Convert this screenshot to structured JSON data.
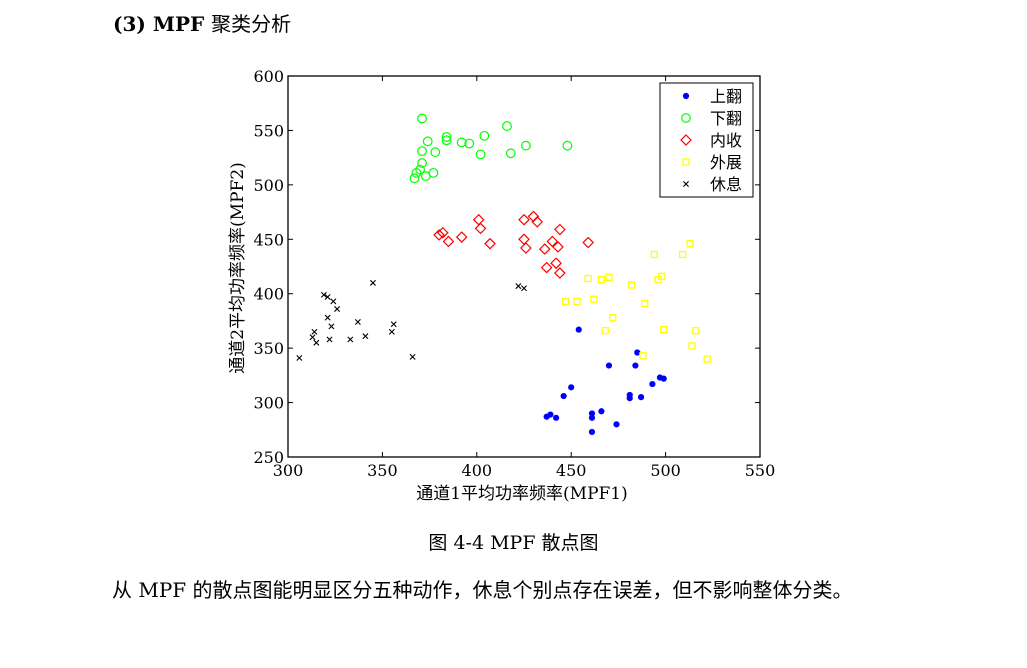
{
  "heading": {
    "number": "(3)",
    "title_en": "MPF",
    "title_zh": "聚类分析"
  },
  "caption": "图 4-4 MPF 散点图",
  "paragraph": "从 MPF 的散点图能明显区分五种动作，休息个别点存在误差，但不影响整体分类。",
  "chart_data": {
    "type": "scatter",
    "xlabel": "通道1平均功率频率(MPF1)",
    "ylabel": "通道2平均功率频率(MPF2)",
    "xlim": [
      300,
      550
    ],
    "ylim": [
      250,
      600
    ],
    "xticks": [
      300,
      350,
      400,
      450,
      500,
      550
    ],
    "yticks": [
      250,
      300,
      350,
      400,
      450,
      500,
      550,
      600
    ],
    "grid": false,
    "legend_position": "top-right",
    "series": [
      {
        "name": "上翻",
        "color": "#0000ff",
        "marker": "dot",
        "points": [
          [
            437,
            287
          ],
          [
            439,
            289
          ],
          [
            442,
            286
          ],
          [
            446,
            306
          ],
          [
            450,
            314
          ],
          [
            454,
            367
          ],
          [
            461,
            290
          ],
          [
            461,
            286
          ],
          [
            461,
            273
          ],
          [
            466,
            292
          ],
          [
            470,
            334
          ],
          [
            474,
            280
          ],
          [
            481,
            307
          ],
          [
            481,
            304
          ],
          [
            484,
            334
          ],
          [
            485,
            346
          ],
          [
            487,
            305
          ],
          [
            493,
            317
          ],
          [
            497,
            323
          ],
          [
            499,
            322
          ]
        ]
      },
      {
        "name": "下翻",
        "color": "#00ff00",
        "marker": "circle",
        "points": [
          [
            367,
            506
          ],
          [
            368,
            511
          ],
          [
            370,
            514
          ],
          [
            371,
            520
          ],
          [
            371,
            531
          ],
          [
            371,
            561
          ],
          [
            373,
            508
          ],
          [
            374,
            540
          ],
          [
            377,
            511
          ],
          [
            378,
            530
          ],
          [
            384,
            541
          ],
          [
            384,
            544
          ],
          [
            392,
            539
          ],
          [
            396,
            538
          ],
          [
            402,
            528
          ],
          [
            404,
            545
          ],
          [
            416,
            554
          ],
          [
            418,
            529
          ],
          [
            426,
            536
          ],
          [
            448,
            536
          ]
        ]
      },
      {
        "name": "内收",
        "color": "#ff0000",
        "marker": "diamond",
        "points": [
          [
            380,
            454
          ],
          [
            382,
            456
          ],
          [
            385,
            448
          ],
          [
            392,
            452
          ],
          [
            401,
            468
          ],
          [
            402,
            460
          ],
          [
            407,
            446
          ],
          [
            425,
            468
          ],
          [
            425,
            450
          ],
          [
            426,
            442
          ],
          [
            430,
            471
          ],
          [
            432,
            466
          ],
          [
            436,
            441
          ],
          [
            437,
            424
          ],
          [
            440,
            448
          ],
          [
            442,
            428
          ],
          [
            443,
            443
          ],
          [
            444,
            459
          ],
          [
            444,
            419
          ],
          [
            459,
            447
          ]
        ]
      },
      {
        "name": "外展",
        "color": "#ffff00",
        "marker": "square",
        "points": [
          [
            447,
            393
          ],
          [
            453,
            393
          ],
          [
            459,
            414
          ],
          [
            462,
            395
          ],
          [
            466,
            413
          ],
          [
            468,
            366
          ],
          [
            470,
            415
          ],
          [
            472,
            378
          ],
          [
            482,
            408
          ],
          [
            488,
            343
          ],
          [
            489,
            391
          ],
          [
            494,
            436
          ],
          [
            496,
            413
          ],
          [
            498,
            416
          ],
          [
            499,
            367
          ],
          [
            509,
            436
          ],
          [
            513,
            446
          ],
          [
            514,
            352
          ],
          [
            516,
            366
          ],
          [
            522,
            340
          ]
        ]
      },
      {
        "name": "休息",
        "color": "#000000",
        "marker": "x",
        "points": [
          [
            306,
            341
          ],
          [
            313,
            360
          ],
          [
            314,
            365
          ],
          [
            315,
            355
          ],
          [
            319,
            399
          ],
          [
            321,
            397
          ],
          [
            321,
            378
          ],
          [
            322,
            358
          ],
          [
            323,
            370
          ],
          [
            324,
            393
          ],
          [
            326,
            386
          ],
          [
            333,
            358
          ],
          [
            337,
            374
          ],
          [
            341,
            361
          ],
          [
            345,
            410
          ],
          [
            355,
            365
          ],
          [
            356,
            372
          ],
          [
            366,
            342
          ],
          [
            422,
            407
          ],
          [
            425,
            405
          ]
        ]
      }
    ]
  }
}
